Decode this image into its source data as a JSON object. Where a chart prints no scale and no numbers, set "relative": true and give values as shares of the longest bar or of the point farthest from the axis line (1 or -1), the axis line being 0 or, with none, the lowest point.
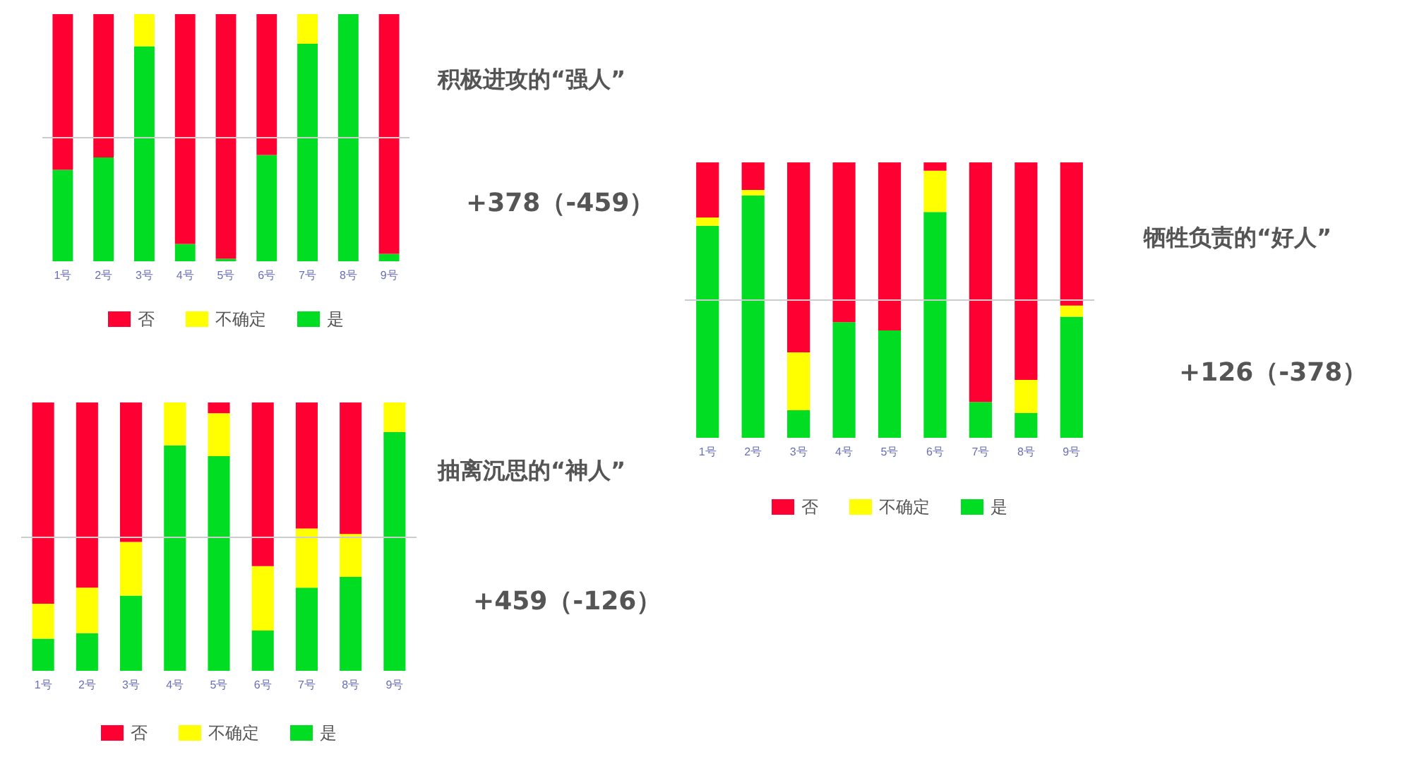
{
  "chart_data": [
    {
      "type": "bar",
      "annotations": [
        "积极进攻的“强人”",
        "+378（-459）"
      ],
      "relative": true,
      "stacked": true,
      "legend": "bottom",
      "categories": [
        "1号",
        "2号",
        "3号",
        "4号",
        "5号",
        "6号",
        "7号",
        "8号",
        "9号"
      ],
      "ref_lines": [
        {
          "axis": "y",
          "value": 0.5,
          "color": "#cccccc"
        }
      ],
      "series": [
        {
          "name": "是",
          "color": "#00dd22",
          "values": [
            0.37,
            0.42,
            0.87,
            0.07,
            0.01,
            0.43,
            0.88,
            1.0,
            0.03
          ]
        },
        {
          "name": "不确定",
          "color": "#ffff00",
          "values": [
            0,
            0,
            0.13,
            0,
            0,
            0,
            0.12,
            0,
            0
          ]
        },
        {
          "name": "否",
          "color": "#ff0033",
          "values": [
            0.63,
            0.58,
            0,
            0.93,
            0.99,
            0.57,
            0,
            0,
            0.97
          ]
        }
      ]
    },
    {
      "type": "bar",
      "annotations": [
        "牺牲负责的“好人”",
        "+126（-378）"
      ],
      "relative": true,
      "stacked": true,
      "legend": "bottom",
      "categories": [
        "1号",
        "2号",
        "3号",
        "4号",
        "5号",
        "6号",
        "7号",
        "8号",
        "9号"
      ],
      "ref_lines": [
        {
          "axis": "y",
          "value": 0.5,
          "color": "#cccccc"
        }
      ],
      "series": [
        {
          "name": "是",
          "color": "#00dd22",
          "values": [
            0.77,
            0.88,
            0.1,
            0.42,
            0.39,
            0.82,
            0.13,
            0.09,
            0.44
          ]
        },
        {
          "name": "不确定",
          "color": "#ffff00",
          "values": [
            0.03,
            0.02,
            0.21,
            0,
            0,
            0.15,
            0,
            0.12,
            0.04
          ]
        },
        {
          "name": "否",
          "color": "#ff0033",
          "values": [
            0.2,
            0.1,
            0.69,
            0.58,
            0.61,
            0.03,
            0.87,
            0.79,
            0.52
          ]
        }
      ]
    },
    {
      "type": "bar",
      "annotations": [
        "抽离沉思的“神人”",
        "+459（-126）"
      ],
      "relative": true,
      "stacked": true,
      "legend": "bottom",
      "categories": [
        "1号",
        "2号",
        "3号",
        "4号",
        "5号",
        "6号",
        "7号",
        "8号",
        "9号"
      ],
      "ref_lines": [
        {
          "axis": "y",
          "value": 0.5,
          "color": "#cccccc"
        }
      ],
      "series": [
        {
          "name": "是",
          "color": "#00dd22",
          "values": [
            0.12,
            0.14,
            0.28,
            0.84,
            0.8,
            0.15,
            0.31,
            0.35,
            0.89
          ]
        },
        {
          "name": "不确定",
          "color": "#ffff00",
          "values": [
            0.13,
            0.17,
            0.2,
            0.16,
            0.16,
            0.24,
            0.22,
            0.16,
            0.11
          ]
        },
        {
          "name": "否",
          "color": "#ff0033",
          "values": [
            0.75,
            0.69,
            0.52,
            0,
            0.04,
            0.61,
            0.47,
            0.49,
            0
          ]
        }
      ]
    }
  ]
}
